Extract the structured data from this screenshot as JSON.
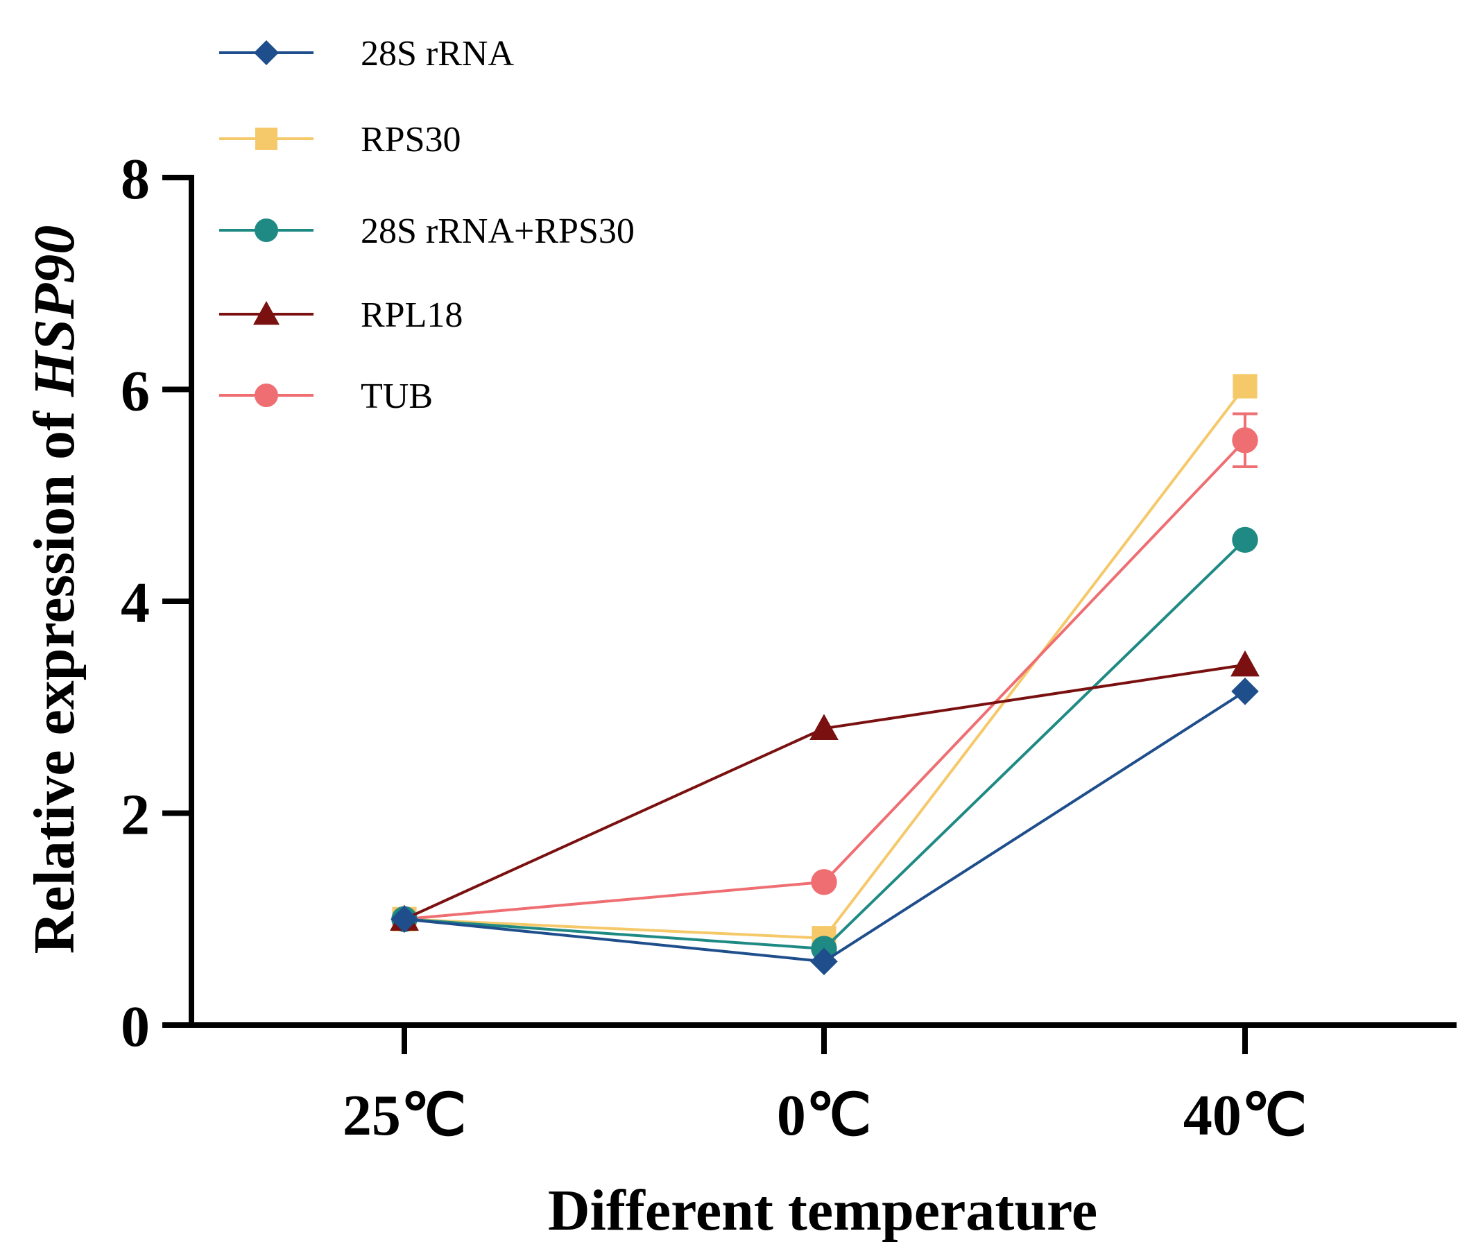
{
  "chart_data": {
    "type": "line",
    "categories": [
      "25℃",
      "0℃",
      "40℃"
    ],
    "xlabel": "Different temperature",
    "ylabel_prefix": "Relative expression of ",
    "ylabel_gene": "HSP90",
    "ylim": [
      0,
      8
    ],
    "yticks": [
      0,
      2,
      4,
      6,
      8
    ],
    "grid": false,
    "legend_position": "top-left",
    "series": [
      {
        "name": "28S rRNA",
        "color": "#1f4e8c",
        "marker": "diamond",
        "values": [
          1.0,
          0.6,
          3.15
        ]
      },
      {
        "name": "RPS30",
        "color": "#f5c96a",
        "marker": "square",
        "values": [
          1.0,
          0.82,
          6.03
        ]
      },
      {
        "name": "28S rRNA+RPS30",
        "color": "#1f8a84",
        "marker": "circle",
        "values": [
          1.0,
          0.72,
          4.58
        ]
      },
      {
        "name": "RPL18",
        "color": "#7a1010",
        "marker": "triangle",
        "values": [
          1.0,
          2.8,
          3.4
        ]
      },
      {
        "name": "TUB",
        "color": "#ee6e72",
        "marker": "circle",
        "values": [
          1.0,
          1.35,
          5.52
        ],
        "error": [
          0,
          0,
          0.25
        ]
      }
    ]
  }
}
